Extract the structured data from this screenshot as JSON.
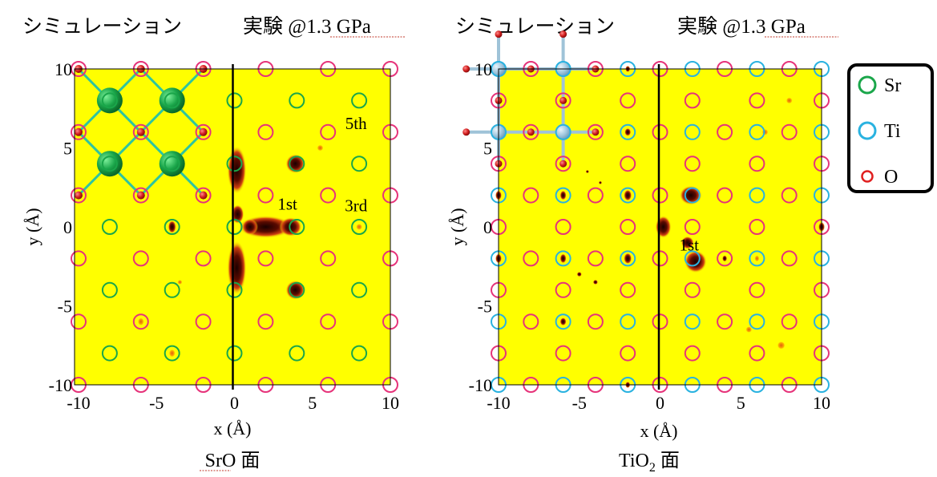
{
  "chart_data": [
    {
      "type": "scatter",
      "panel": "left",
      "title_sim": "シミュレーション",
      "title_exp": "実験 @1.3 GPa",
      "xlabel": "x (Å)",
      "ylabel": "y (Å)",
      "caption": "SrO 面",
      "xlim": [
        -10,
        10
      ],
      "ylim": [
        -10,
        10
      ],
      "xticks": [
        "-10",
        "-5",
        "0",
        "5",
        "10"
      ],
      "yticks": [
        "10",
        "5",
        "0",
        "-5",
        "-10"
      ],
      "series": [
        {
          "name": "Sr",
          "points": [
            [
              -8,
              8
            ],
            [
              -4,
              8
            ],
            [
              0,
              8
            ],
            [
              4,
              8
            ],
            [
              8,
              8
            ],
            [
              -8,
              4
            ],
            [
              -4,
              4
            ],
            [
              0,
              4
            ],
            [
              4,
              4
            ],
            [
              8,
              4
            ],
            [
              -8,
              0
            ],
            [
              -4,
              0
            ],
            [
              0,
              0
            ],
            [
              4,
              0
            ],
            [
              8,
              0
            ],
            [
              -8,
              -4
            ],
            [
              -4,
              -4
            ],
            [
              0,
              -4
            ],
            [
              4,
              -4
            ],
            [
              8,
              -4
            ],
            [
              -8,
              -8
            ],
            [
              -4,
              -8
            ],
            [
              0,
              -8
            ],
            [
              4,
              -8
            ],
            [
              8,
              -8
            ]
          ]
        },
        {
          "name": "O",
          "points": [
            [
              -10,
              10
            ],
            [
              -6,
              10
            ],
            [
              -2,
              10
            ],
            [
              2,
              10
            ],
            [
              6,
              10
            ],
            [
              10,
              10
            ],
            [
              -10,
              6
            ],
            [
              -6,
              6
            ],
            [
              -2,
              6
            ],
            [
              2,
              6
            ],
            [
              6,
              6
            ],
            [
              10,
              6
            ],
            [
              -10,
              2
            ],
            [
              -6,
              2
            ],
            [
              -2,
              2
            ],
            [
              2,
              2
            ],
            [
              6,
              2
            ],
            [
              10,
              2
            ],
            [
              -10,
              -2
            ],
            [
              -6,
              -2
            ],
            [
              -2,
              -2
            ],
            [
              2,
              -2
            ],
            [
              6,
              -2
            ],
            [
              10,
              -2
            ],
            [
              -10,
              -6
            ],
            [
              -6,
              -6
            ],
            [
              -2,
              -6
            ],
            [
              2,
              -6
            ],
            [
              6,
              -6
            ],
            [
              10,
              -6
            ],
            [
              -10,
              -10
            ],
            [
              -6,
              -10
            ],
            [
              -2,
              -10
            ],
            [
              2,
              -10
            ],
            [
              6,
              -10
            ],
            [
              10,
              -10
            ]
          ]
        }
      ],
      "annotations": [
        {
          "text": "5th",
          "x": 7.8,
          "y": 6.2
        },
        {
          "text": "1st",
          "x": 3.4,
          "y": 1.1
        },
        {
          "text": "3rd",
          "x": 7.8,
          "y": 1.0
        }
      ]
    },
    {
      "type": "scatter",
      "panel": "right",
      "title_sim": "シミュレーション",
      "title_exp": "実験 @1.3 GPa",
      "xlabel": "x (Å)",
      "ylabel": "y (Å)",
      "caption_main": "TiO",
      "caption_sub": "2",
      "caption_tail": " 面",
      "xlim": [
        -10,
        10
      ],
      "ylim": [
        -10,
        10
      ],
      "xticks": [
        "-10",
        "-5",
        "0",
        "5",
        "10"
      ],
      "yticks": [
        "10",
        "5",
        "0",
        "-5",
        "-10"
      ],
      "series": [
        {
          "name": "Ti",
          "points": [
            [
              -10,
              10
            ],
            [
              -6,
              10
            ],
            [
              -2,
              10
            ],
            [
              2,
              10
            ],
            [
              6,
              10
            ],
            [
              10,
              10
            ],
            [
              -10,
              6
            ],
            [
              -6,
              6
            ],
            [
              -2,
              6
            ],
            [
              2,
              6
            ],
            [
              6,
              6
            ],
            [
              10,
              6
            ],
            [
              -10,
              2
            ],
            [
              -6,
              2
            ],
            [
              -2,
              2
            ],
            [
              2,
              2
            ],
            [
              6,
              2
            ],
            [
              10,
              2
            ],
            [
              -10,
              -2
            ],
            [
              -6,
              -2
            ],
            [
              -2,
              -2
            ],
            [
              2,
              -2
            ],
            [
              6,
              -2
            ],
            [
              10,
              -2
            ],
            [
              -10,
              -6
            ],
            [
              -6,
              -6
            ],
            [
              -2,
              -6
            ],
            [
              2,
              -6
            ],
            [
              6,
              -6
            ],
            [
              10,
              -6
            ],
            [
              -10,
              -10
            ],
            [
              -6,
              -10
            ],
            [
              -2,
              -10
            ],
            [
              2,
              -10
            ],
            [
              6,
              -10
            ],
            [
              10,
              -10
            ]
          ]
        },
        {
          "name": "O",
          "points": [
            [
              -8,
              10
            ],
            [
              -4,
              10
            ],
            [
              0,
              10
            ],
            [
              4,
              10
            ],
            [
              8,
              10
            ],
            [
              -10,
              8
            ],
            [
              -6,
              8
            ],
            [
              -2,
              8
            ],
            [
              2,
              8
            ],
            [
              6,
              8
            ],
            [
              10,
              8
            ],
            [
              -8,
              6
            ],
            [
              -4,
              6
            ],
            [
              0,
              6
            ],
            [
              4,
              6
            ],
            [
              8,
              6
            ],
            [
              -10,
              4
            ],
            [
              -6,
              4
            ],
            [
              -2,
              4
            ],
            [
              2,
              4
            ],
            [
              6,
              4
            ],
            [
              10,
              4
            ],
            [
              -8,
              2
            ],
            [
              -4,
              2
            ],
            [
              0,
              2
            ],
            [
              4,
              2
            ],
            [
              8,
              2
            ],
            [
              -10,
              0
            ],
            [
              -6,
              0
            ],
            [
              -2,
              0
            ],
            [
              2,
              0
            ],
            [
              6,
              0
            ],
            [
              10,
              0
            ],
            [
              -8,
              -2
            ],
            [
              -4,
              -2
            ],
            [
              0,
              -2
            ],
            [
              4,
              -2
            ],
            [
              8,
              -2
            ],
            [
              -10,
              -4
            ],
            [
              -6,
              -4
            ],
            [
              -2,
              -4
            ],
            [
              2,
              -4
            ],
            [
              6,
              -4
            ],
            [
              10,
              -4
            ],
            [
              -8,
              -6
            ],
            [
              -4,
              -6
            ],
            [
              0,
              -6
            ],
            [
              4,
              -6
            ],
            [
              8,
              -6
            ],
            [
              -10,
              -8
            ],
            [
              -6,
              -8
            ],
            [
              -2,
              -8
            ],
            [
              2,
              -8
            ],
            [
              6,
              -8
            ],
            [
              10,
              -8
            ],
            [
              -8,
              -10
            ],
            [
              -4,
              -10
            ],
            [
              0,
              -10
            ],
            [
              4,
              -10
            ],
            [
              8,
              -10
            ]
          ]
        }
      ],
      "annotations": [
        {
          "text": "1st",
          "x": 1.8,
          "y": -1.5
        }
      ]
    }
  ],
  "legend": {
    "position": "right",
    "items": [
      {
        "label": "Sr",
        "color": "#1aa64a"
      },
      {
        "label": "Ti",
        "color": "#29b2e0"
      },
      {
        "label": "O",
        "color": "#e02020"
      }
    ]
  },
  "colors": {
    "background": "#ffff00",
    "sr_marker": "#1aa64a",
    "o_marker": "#e6337a",
    "ti_marker": "#29b2e0",
    "density": "#2a0000",
    "underline": "#c0392b"
  }
}
